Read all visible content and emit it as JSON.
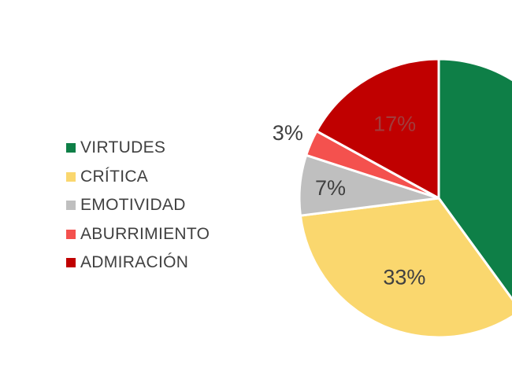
{
  "chart_data": {
    "type": "pie",
    "title": "",
    "legend_position": "left",
    "categories": [
      "VIRTUDES",
      "CRÍTICA",
      "EMOTIVIDAD",
      "ABURRIMIENTO",
      "ADMIRACIÓN"
    ],
    "values": [
      40,
      33,
      7,
      3,
      17
    ],
    "data_labels": [
      "",
      "33%",
      "7%",
      "3%",
      "17%"
    ],
    "colors": [
      "#0E7F47",
      "#FAD76E",
      "#BFBFBF",
      "#F4514E",
      "#C00000"
    ],
    "label_colors": [
      "#404040",
      "#404040",
      "#404040",
      "#404040",
      "#A03C3C"
    ]
  }
}
